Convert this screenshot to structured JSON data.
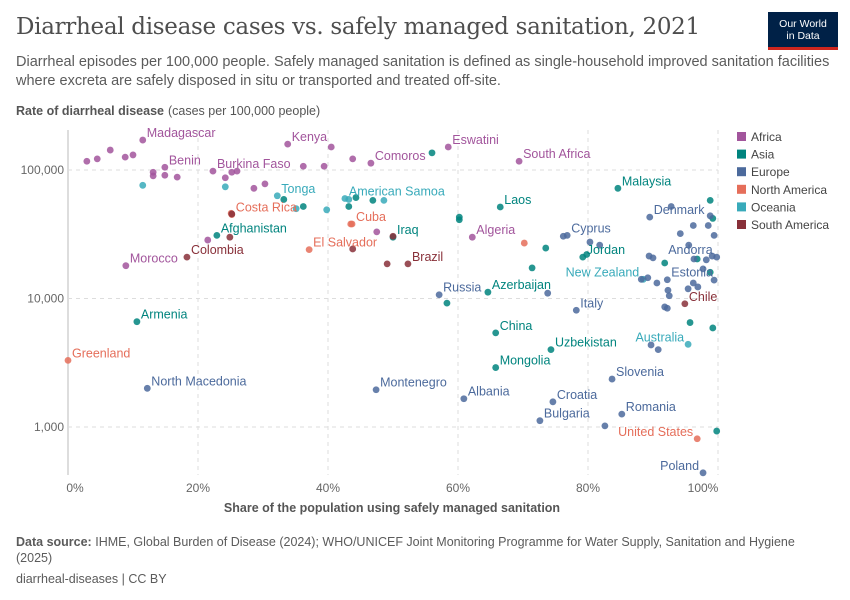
{
  "title": "Diarrheal disease cases vs. safely managed sanitation, 2021",
  "subtitle": "Diarrheal episodes per 100,000 people. Safely managed sanitation is defined as single-household improved sanitation facilities where excreta are safely disposed in situ or transported and treated off-site.",
  "logo": {
    "line1": "Our World",
    "line2": "in Data"
  },
  "footer": {
    "source_label": "Data source:",
    "source_text": "IHME, Global Burden of Disease (2024); WHO/UNICEF Joint Monitoring Programme for Water Supply, Sanitation and Hygiene (2025)",
    "license": "diarrheal-diseases | CC BY"
  },
  "chart_data": {
    "type": "scatter",
    "title": "Diarrheal disease cases vs. safely managed sanitation, 2021",
    "ylabel_bold": "Rate of diarrheal disease",
    "ylabel_rest": "(cases per 100,000 people)",
    "xlabel": "Share of the population using safely managed sanitation",
    "x_scale": "linear",
    "y_scale": "log",
    "xlim": [
      0,
      100
    ],
    "ylim": [
      425,
      205000
    ],
    "x_ticks": [
      {
        "v": 0,
        "label": "0%"
      },
      {
        "v": 20,
        "label": "20%"
      },
      {
        "v": 40,
        "label": "40%"
      },
      {
        "v": 60,
        "label": "60%"
      },
      {
        "v": 80,
        "label": "80%"
      },
      {
        "v": 100,
        "label": "100%"
      }
    ],
    "y_ticks": [
      {
        "v": 1000,
        "label": "1,000"
      },
      {
        "v": 10000,
        "label": "10,000"
      },
      {
        "v": 100000,
        "label": "100,000"
      }
    ],
    "grid": true,
    "legend_position": "right",
    "legend": [
      {
        "name": "Africa",
        "color": "#a2559c"
      },
      {
        "name": "Asia",
        "color": "#00847e"
      },
      {
        "name": "Europe",
        "color": "#4c6a9c"
      },
      {
        "name": "North America",
        "color": "#e56e5a"
      },
      {
        "name": "Oceania",
        "color": "#38aaba"
      },
      {
        "name": "South America",
        "color": "#883039"
      }
    ],
    "points": [
      [
        11.5,
        171000,
        "Africa",
        "Madagascar"
      ],
      [
        14.9,
        105000,
        "Africa",
        "Benin"
      ],
      [
        22.3,
        98000,
        "Africa",
        "Burkina Faso"
      ],
      [
        33.8,
        159000,
        "Africa",
        "Kenya"
      ],
      [
        46.6,
        113000,
        "Africa",
        "Comoros"
      ],
      [
        58.5,
        151000,
        "Africa",
        "Eswatini"
      ],
      [
        69.4,
        117000,
        "Africa",
        "South Africa"
      ],
      [
        62.2,
        30000,
        "Africa",
        "Algeria"
      ],
      [
        8.9,
        18000,
        "Africa",
        "Morocco"
      ],
      [
        84.6,
        72000,
        "Asia",
        "Malaysia"
      ],
      [
        66.5,
        51500,
        "Asia",
        "Laos"
      ],
      [
        79.2,
        21000,
        "Asia",
        "Jordan"
      ],
      [
        50,
        30000,
        "Asia",
        "Iraq"
      ],
      [
        22.9,
        31000,
        "Asia",
        "Afghanistan"
      ],
      [
        10.6,
        6600,
        "Asia",
        "Armenia"
      ],
      [
        64.6,
        11200,
        "Asia",
        "Azerbaijan"
      ],
      [
        65.8,
        5400,
        "Asia",
        "China"
      ],
      [
        74.3,
        4000,
        "Asia",
        "Uzbekistan"
      ],
      [
        65.8,
        2900,
        "Asia",
        "Mongolia"
      ],
      [
        76.8,
        31000,
        "Europe",
        "Cyprus"
      ],
      [
        89.5,
        43000,
        "Europe",
        "Denmark"
      ],
      [
        99.8,
        21000,
        "Europe",
        "Andorra"
      ],
      [
        92.2,
        14000,
        "Europe",
        "Estonia"
      ],
      [
        78.2,
        8100,
        "Europe",
        "Italy"
      ],
      [
        57.1,
        10700,
        "Europe",
        "Russia"
      ],
      [
        12.2,
        2000,
        "Europe",
        "North Macedonia"
      ],
      [
        47.4,
        1950,
        "Europe",
        "Montenegro"
      ],
      [
        60.9,
        1660,
        "Europe",
        "Albania"
      ],
      [
        74.6,
        1570,
        "Europe",
        "Croatia"
      ],
      [
        72.6,
        1120,
        "Europe",
        "Bulgaria"
      ],
      [
        83.7,
        2360,
        "Europe",
        "Slovenia"
      ],
      [
        85.2,
        1260,
        "Europe",
        "Romania"
      ],
      [
        97.7,
        440,
        "Europe",
        "Poland"
      ],
      [
        43.7,
        38000,
        "North America",
        "Cuba"
      ],
      [
        37.1,
        24000,
        "North America",
        "El Salvador"
      ],
      [
        25.2,
        45000,
        "North America",
        "Costa Rica"
      ],
      [
        0,
        3300,
        "North America",
        "Greenland"
      ],
      [
        96.8,
        810,
        "North America",
        "United States"
      ],
      [
        32.2,
        63000,
        "Oceania",
        "Tonga"
      ],
      [
        42.6,
        60000,
        "Oceania",
        "American Samoa"
      ],
      [
        88.5,
        14100,
        "Oceania",
        "New Zealand"
      ],
      [
        95.4,
        4400,
        "Oceania",
        "Australia"
      ],
      [
        18.3,
        21000,
        "South America",
        "Colombia"
      ],
      [
        52.3,
        18600,
        "South America",
        "Brazil"
      ],
      [
        94.9,
        9100,
        "South America",
        "Chile"
      ],
      [
        2.9,
        117000,
        "Africa",
        ""
      ],
      [
        4.5,
        122000,
        "Africa",
        ""
      ],
      [
        6.5,
        143000,
        "Africa",
        ""
      ],
      [
        8.8,
        126000,
        "Africa",
        ""
      ],
      [
        10,
        131000,
        "Africa",
        ""
      ],
      [
        13.1,
        96000,
        "Africa",
        ""
      ],
      [
        13.1,
        90000,
        "Africa",
        ""
      ],
      [
        14.9,
        91000,
        "Africa",
        ""
      ],
      [
        16.8,
        88000,
        "Africa",
        ""
      ],
      [
        24.2,
        87000,
        "Africa",
        ""
      ],
      [
        28.6,
        72000,
        "Africa",
        ""
      ],
      [
        30.3,
        78000,
        "Africa",
        ""
      ],
      [
        26,
        98000,
        "Africa",
        ""
      ],
      [
        36.2,
        107000,
        "Africa",
        ""
      ],
      [
        39.4,
        107000,
        "Africa",
        ""
      ],
      [
        43.8,
        122000,
        "Africa",
        ""
      ],
      [
        40.5,
        151000,
        "Africa",
        ""
      ],
      [
        47.5,
        33000,
        "Africa",
        ""
      ],
      [
        21.5,
        28500,
        "Africa",
        ""
      ],
      [
        25.2,
        96000,
        "Africa",
        ""
      ],
      [
        33.2,
        59000,
        "Asia",
        ""
      ],
      [
        43.2,
        52000,
        "Asia",
        ""
      ],
      [
        44.3,
        61000,
        "Asia",
        ""
      ],
      [
        46.9,
        58000,
        "Asia",
        ""
      ],
      [
        56,
        136000,
        "Asia",
        ""
      ],
      [
        60.2,
        43000,
        "Asia",
        ""
      ],
      [
        60.2,
        41000,
        "Asia",
        ""
      ],
      [
        71.4,
        17300,
        "Asia",
        ""
      ],
      [
        73.5,
        24700,
        "Asia",
        ""
      ],
      [
        79.8,
        22000,
        "Asia",
        ""
      ],
      [
        58.3,
        9200,
        "Asia",
        ""
      ],
      [
        98.8,
        58000,
        "Asia",
        ""
      ],
      [
        99.2,
        42000,
        "Asia",
        ""
      ],
      [
        96.8,
        20300,
        "Asia",
        ""
      ],
      [
        98.8,
        16000,
        "Asia",
        ""
      ],
      [
        91.8,
        18900,
        "Asia",
        ""
      ],
      [
        95.7,
        6500,
        "Asia",
        ""
      ],
      [
        99.2,
        5900,
        "Asia",
        ""
      ],
      [
        99.8,
        930,
        "Asia",
        ""
      ],
      [
        36.2,
        52000,
        "Asia",
        ""
      ],
      [
        11.5,
        76000,
        "Oceania",
        ""
      ],
      [
        24.2,
        74000,
        "Oceania",
        ""
      ],
      [
        35.1,
        50000,
        "Oceania",
        ""
      ],
      [
        39.8,
        49000,
        "Oceania",
        ""
      ],
      [
        43.2,
        59000,
        "Oceania",
        ""
      ],
      [
        48.6,
        58000,
        "Oceania",
        ""
      ],
      [
        25.1,
        46000,
        "North America",
        ""
      ],
      [
        43.5,
        38000,
        "North America",
        ""
      ],
      [
        70.2,
        27000,
        "North America",
        ""
      ],
      [
        24.9,
        30000,
        "South America",
        ""
      ],
      [
        43.8,
        24300,
        "South America",
        ""
      ],
      [
        49.1,
        18600,
        "South America",
        ""
      ],
      [
        50,
        30500,
        "South America",
        ""
      ],
      [
        25.2,
        45500,
        "South America",
        ""
      ],
      [
        92.8,
        52000,
        "Europe",
        ""
      ],
      [
        96.2,
        37000,
        "Europe",
        ""
      ],
      [
        98.5,
        37000,
        "Europe",
        ""
      ],
      [
        98.8,
        44000,
        "Europe",
        ""
      ],
      [
        99.4,
        31000,
        "Europe",
        ""
      ],
      [
        94.2,
        32000,
        "Europe",
        ""
      ],
      [
        95.5,
        26000,
        "Europe",
        ""
      ],
      [
        96.3,
        20300,
        "Europe",
        ""
      ],
      [
        98.2,
        20000,
        "Europe",
        ""
      ],
      [
        99.1,
        21400,
        "Europe",
        ""
      ],
      [
        89.4,
        21400,
        "Europe",
        ""
      ],
      [
        90,
        20700,
        "Europe",
        ""
      ],
      [
        89.2,
        14500,
        "Europe",
        ""
      ],
      [
        90.6,
        13200,
        "Europe",
        ""
      ],
      [
        92.3,
        11600,
        "Europe",
        ""
      ],
      [
        95.4,
        11900,
        "Europe",
        ""
      ],
      [
        97.7,
        17000,
        "Europe",
        ""
      ],
      [
        99.4,
        13900,
        "Europe",
        ""
      ],
      [
        88.2,
        14100,
        "Europe",
        ""
      ],
      [
        96.2,
        13200,
        "Europe",
        ""
      ],
      [
        92.5,
        10500,
        "Europe",
        ""
      ],
      [
        96.9,
        12300,
        "Europe",
        ""
      ],
      [
        91.8,
        8600,
        "Europe",
        ""
      ],
      [
        92.2,
        8400,
        "Europe",
        ""
      ],
      [
        80.3,
        27500,
        "Europe",
        ""
      ],
      [
        81.8,
        26000,
        "Europe",
        ""
      ],
      [
        73.8,
        11000,
        "Europe",
        ""
      ],
      [
        82.6,
        1020,
        "Europe",
        ""
      ],
      [
        89.7,
        4350,
        "Europe",
        ""
      ],
      [
        90.8,
        4000,
        "Europe",
        ""
      ],
      [
        76.2,
        30500,
        "Europe",
        ""
      ]
    ]
  }
}
